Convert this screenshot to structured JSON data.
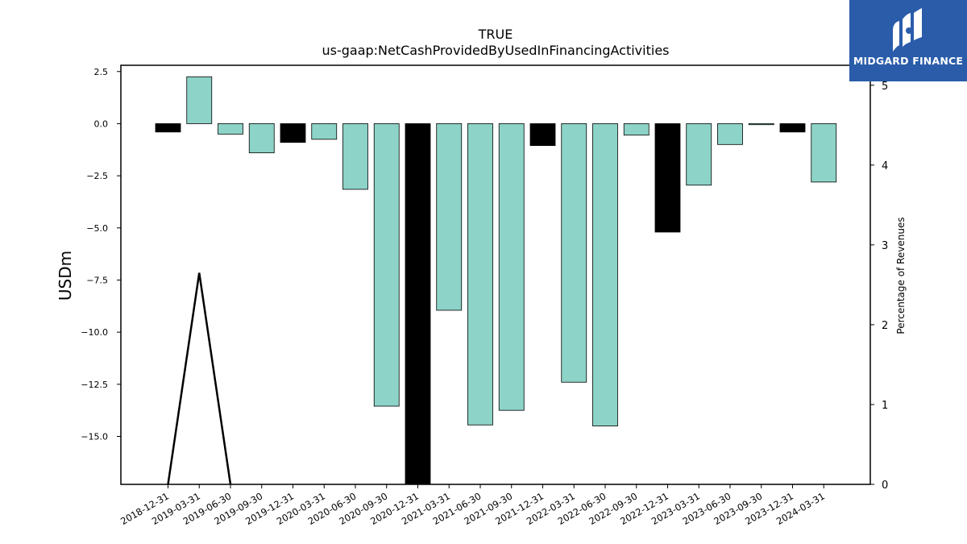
{
  "chart_data": {
    "type": "bar",
    "title": "TRUE",
    "subtitle": "us-gaap:NetCashProvidedByUsedInFinancingActivities",
    "ylabel": "USDm",
    "y2label": "Percentage of Revenues",
    "ylim": [
      -17.3,
      2.8
    ],
    "y2lim": [
      0,
      5.25
    ],
    "yticks": [
      "2.5",
      "0.0",
      "−2.5",
      "−5.0",
      "−7.5",
      "−10.0",
      "−12.5",
      "−15.0"
    ],
    "yticks_values": [
      2.5,
      0,
      -2.5,
      -5,
      -7.5,
      -10,
      -12.5,
      -15
    ],
    "y2ticks": [
      "0",
      "1",
      "2",
      "3",
      "4",
      "5"
    ],
    "y2ticks_values": [
      0,
      1,
      2,
      3,
      4,
      5
    ],
    "categories": [
      "2018-12-31",
      "2019-03-31",
      "2019-06-30",
      "2019-09-30",
      "2019-12-31",
      "2020-03-31",
      "2020-06-30",
      "2020-09-30",
      "2020-12-31",
      "2021-03-31",
      "2021-06-30",
      "2021-09-30",
      "2021-12-31",
      "2022-03-31",
      "2022-06-30",
      "2022-09-30",
      "2022-12-31",
      "2023-03-31",
      "2023-06-30",
      "2023-09-30",
      "2023-12-31",
      "2024-03-31"
    ],
    "values": [
      -0.4,
      2.25,
      -0.5,
      -1.4,
      -0.9,
      -0.75,
      -3.15,
      -13.55,
      -18.0,
      -8.95,
      -14.45,
      -13.75,
      -1.05,
      -12.4,
      -14.5,
      -0.55,
      -5.2,
      -2.95,
      -1.0,
      -0.05,
      -0.4,
      -2.8
    ],
    "bar_colors": [
      "#000000",
      "#8dd3c7",
      "#8dd3c7",
      "#8dd3c7",
      "#000000",
      "#8dd3c7",
      "#8dd3c7",
      "#8dd3c7",
      "#000000",
      "#8dd3c7",
      "#8dd3c7",
      "#8dd3c7",
      "#000000",
      "#8dd3c7",
      "#8dd3c7",
      "#8dd3c7",
      "#000000",
      "#8dd3c7",
      "#8dd3c7",
      "#8dd3c7",
      "#000000",
      "#8dd3c7"
    ],
    "line_series": {
      "axis": "right",
      "x": [
        "2018-12-31",
        "2019-03-31",
        "2019-06-30"
      ],
      "values": [
        0,
        2.65,
        0
      ]
    },
    "grid": false
  },
  "logo": {
    "text": "MIDGARD FINANCE",
    "color": "#2a5caa"
  }
}
